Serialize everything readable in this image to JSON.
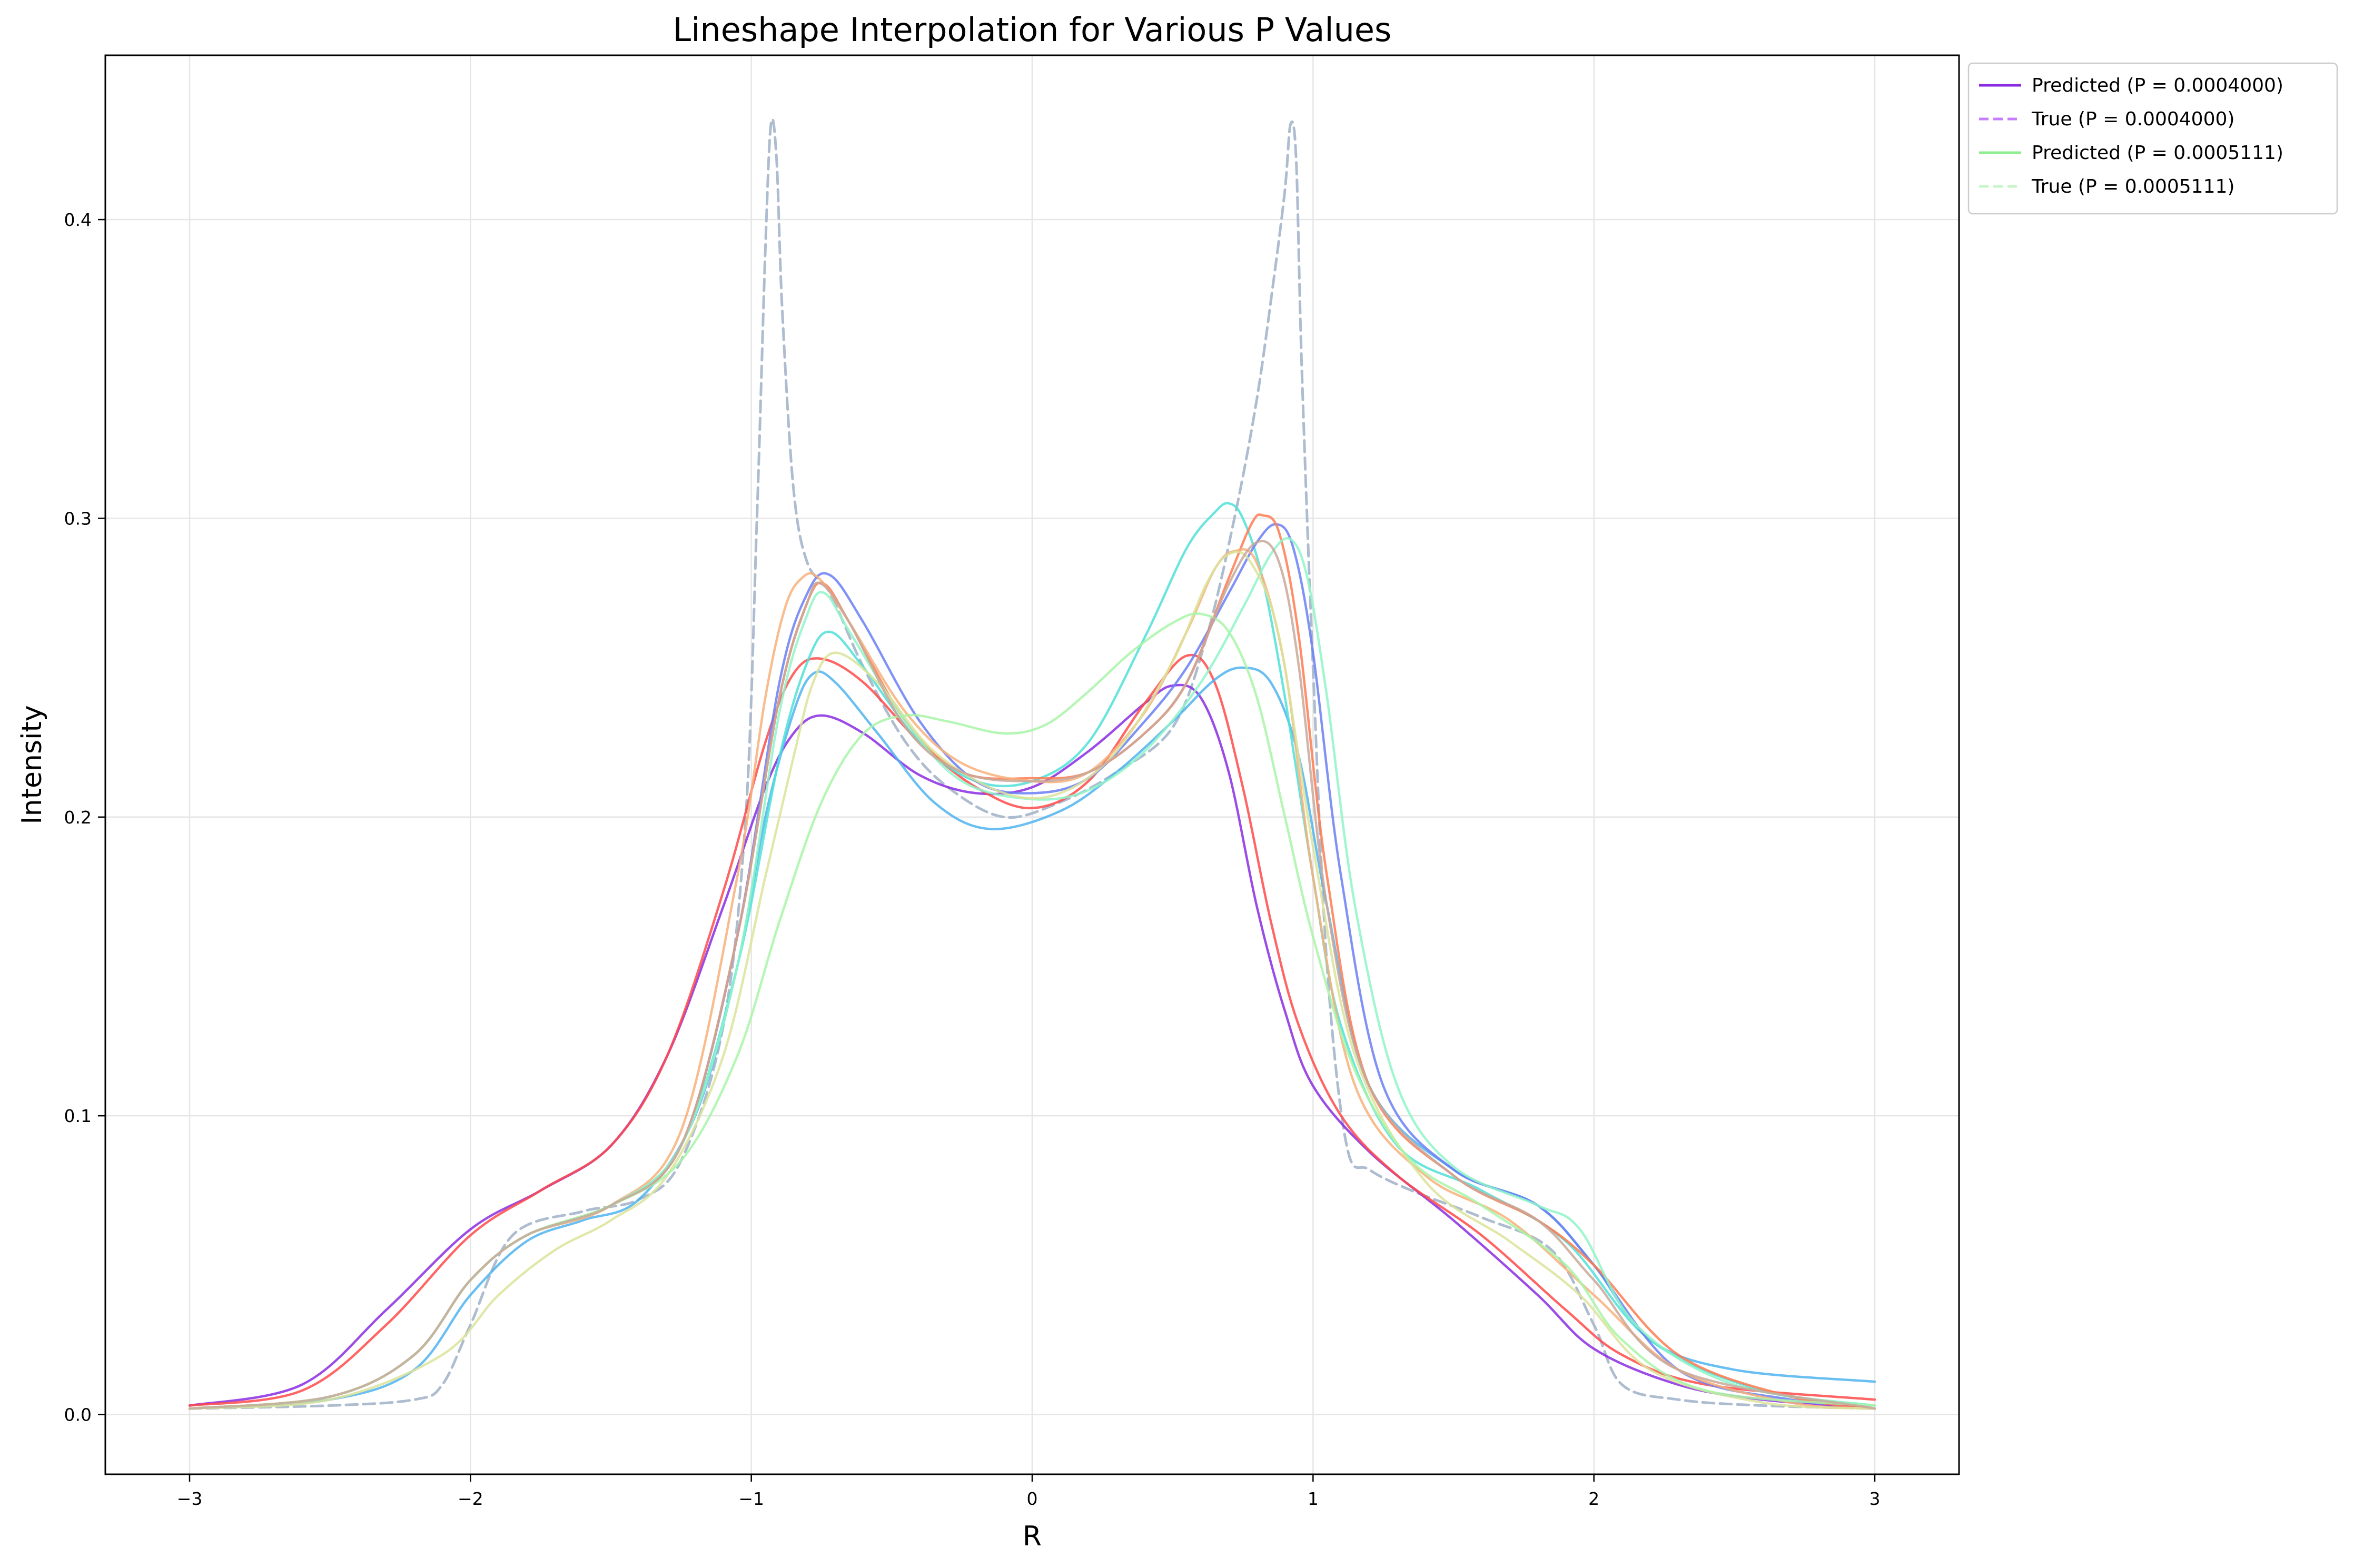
{
  "chart_data": {
    "type": "line",
    "title": "Lineshape Interpolation for Various P Values",
    "xlabel": "R",
    "ylabel": "Intensity",
    "xlim": [
      -3.3,
      3.3
    ],
    "ylim": [
      -0.02,
      0.455
    ],
    "grid": true,
    "legend_placement": "outside-top-right",
    "x_ticks": [
      -3,
      -2,
      -1,
      0,
      1,
      2,
      3
    ],
    "x_tick_labels": [
      "−3",
      "−2",
      "−1",
      "0",
      "1",
      "2",
      "3"
    ],
    "y_ticks": [
      0.0,
      0.1,
      0.2,
      0.3,
      0.4
    ],
    "y_tick_labels": [
      "0.0",
      "0.1",
      "0.2",
      "0.3",
      "0.4"
    ],
    "legend": [
      {
        "label": "Predicted (P = 0.0004000)",
        "color": "#8a2be2",
        "dashed": false
      },
      {
        "label": "True (P = 0.0004000)",
        "color": "#c77dff",
        "dashed": true
      },
      {
        "label": "Predicted (P = 0.0005111)",
        "color": "#90ee90",
        "dashed": false
      },
      {
        "label": "True (P = 0.0005111)",
        "color": "#c8f5c8",
        "dashed": true
      }
    ],
    "series": [
      {
        "name": "True (P = 0.0004000)",
        "color": "#a9b8cc",
        "dashed": true,
        "x": [
          -3,
          -2.5,
          -2.2,
          -2.1,
          -2.0,
          -1.85,
          -1.6,
          -1.4,
          -1.25,
          -1.1,
          -1.02,
          -0.98,
          -0.95,
          -0.93,
          -0.91,
          -0.89,
          -0.85,
          -0.8,
          -0.72,
          -0.6,
          -0.45,
          -0.3,
          -0.1,
          0.1,
          0.3,
          0.5,
          0.62,
          0.72,
          0.8,
          0.86,
          0.9,
          0.92,
          0.94,
          0.96,
          1.0,
          1.05,
          1.12,
          1.2,
          1.35,
          1.6,
          1.85,
          2.0,
          2.1,
          2.3,
          2.6,
          3
        ],
        "y": [
          0.002,
          0.003,
          0.005,
          0.01,
          0.03,
          0.06,
          0.068,
          0.072,
          0.085,
          0.13,
          0.2,
          0.3,
          0.39,
          0.432,
          0.42,
          0.37,
          0.31,
          0.285,
          0.275,
          0.25,
          0.225,
          0.21,
          0.2,
          0.205,
          0.215,
          0.23,
          0.26,
          0.3,
          0.34,
          0.38,
          0.41,
          0.432,
          0.42,
          0.35,
          0.25,
          0.15,
          0.09,
          0.082,
          0.075,
          0.066,
          0.055,
          0.03,
          0.01,
          0.005,
          0.003,
          0.002
        ]
      },
      {
        "name": "",
        "color": "#8a2be2",
        "dashed": false,
        "x": [
          -3,
          -2.6,
          -2.3,
          -2.0,
          -1.75,
          -1.5,
          -1.3,
          -1.1,
          -0.95,
          -0.85,
          -0.75,
          -0.6,
          -0.4,
          -0.2,
          0,
          0.2,
          0.4,
          0.5,
          0.6,
          0.7,
          0.8,
          0.9,
          1.0,
          1.2,
          1.5,
          1.8,
          2.0,
          2.3,
          2.6,
          3
        ],
        "y": [
          0.003,
          0.01,
          0.035,
          0.062,
          0.075,
          0.09,
          0.12,
          0.17,
          0.21,
          0.228,
          0.234,
          0.228,
          0.214,
          0.208,
          0.21,
          0.222,
          0.238,
          0.244,
          0.24,
          0.215,
          0.17,
          0.135,
          0.11,
          0.088,
          0.065,
          0.04,
          0.022,
          0.01,
          0.005,
          0.002
        ]
      },
      {
        "name": "",
        "color": "#ff4a4a",
        "dashed": false,
        "x": [
          -3,
          -2.6,
          -2.3,
          -2.0,
          -1.75,
          -1.5,
          -1.3,
          -1.1,
          -0.95,
          -0.85,
          -0.75,
          -0.6,
          -0.4,
          -0.2,
          0,
          0.2,
          0.4,
          0.55,
          0.65,
          0.75,
          0.85,
          0.95,
          1.1,
          1.3,
          1.6,
          1.9,
          2.1,
          2.4,
          3
        ],
        "y": [
          0.003,
          0.008,
          0.03,
          0.06,
          0.075,
          0.09,
          0.12,
          0.175,
          0.225,
          0.248,
          0.253,
          0.245,
          0.225,
          0.21,
          0.203,
          0.212,
          0.238,
          0.254,
          0.245,
          0.21,
          0.165,
          0.13,
          0.1,
          0.08,
          0.06,
          0.035,
          0.02,
          0.01,
          0.005
        ]
      },
      {
        "name": "",
        "color": "#4fb3f0",
        "dashed": false,
        "x": [
          -3,
          -2.5,
          -2.2,
          -2.0,
          -1.8,
          -1.6,
          -1.4,
          -1.2,
          -1.05,
          -0.95,
          -0.85,
          -0.78,
          -0.7,
          -0.55,
          -0.35,
          -0.15,
          0.1,
          0.3,
          0.5,
          0.65,
          0.75,
          0.85,
          0.95,
          1.05,
          1.2,
          1.5,
          1.8,
          2.0,
          2.2,
          2.5,
          3
        ],
        "y": [
          0.002,
          0.005,
          0.015,
          0.04,
          0.058,
          0.065,
          0.072,
          0.1,
          0.15,
          0.2,
          0.235,
          0.248,
          0.245,
          0.228,
          0.205,
          0.196,
          0.202,
          0.215,
          0.232,
          0.246,
          0.25,
          0.245,
          0.22,
          0.17,
          0.11,
          0.082,
          0.07,
          0.05,
          0.025,
          0.015,
          0.011
        ]
      },
      {
        "name": "",
        "color": "#50e0d8",
        "dashed": false,
        "x": [
          -3,
          -2.5,
          -2.2,
          -2.0,
          -1.8,
          -1.5,
          -1.25,
          -1.05,
          -0.9,
          -0.8,
          -0.72,
          -0.6,
          -0.4,
          -0.2,
          0,
          0.2,
          0.4,
          0.55,
          0.65,
          0.7,
          0.75,
          0.82,
          0.9,
          1.0,
          1.1,
          1.3,
          1.6,
          1.9,
          2.2,
          2.6,
          3
        ],
        "y": [
          0.002,
          0.006,
          0.02,
          0.045,
          0.06,
          0.07,
          0.09,
          0.15,
          0.22,
          0.252,
          0.262,
          0.25,
          0.225,
          0.212,
          0.212,
          0.225,
          0.26,
          0.29,
          0.302,
          0.305,
          0.3,
          0.28,
          0.24,
          0.18,
          0.13,
          0.09,
          0.075,
          0.058,
          0.025,
          0.008,
          0.003
        ]
      },
      {
        "name": "",
        "color": "#6a7ff5",
        "dashed": false,
        "x": [
          -3,
          -2.5,
          -2.2,
          -2.0,
          -1.8,
          -1.5,
          -1.25,
          -1.05,
          -0.9,
          -0.8,
          -0.72,
          -0.6,
          -0.4,
          -0.2,
          0,
          0.2,
          0.4,
          0.55,
          0.7,
          0.8,
          0.87,
          0.93,
          1.0,
          1.1,
          1.25,
          1.5,
          1.8,
          2.0,
          2.3,
          2.7,
          3
        ],
        "y": [
          0.002,
          0.006,
          0.02,
          0.045,
          0.06,
          0.07,
          0.09,
          0.16,
          0.245,
          0.275,
          0.281,
          0.265,
          0.232,
          0.212,
          0.208,
          0.213,
          0.232,
          0.25,
          0.275,
          0.292,
          0.298,
          0.29,
          0.255,
          0.18,
          0.11,
          0.082,
          0.07,
          0.05,
          0.015,
          0.005,
          0.003
        ]
      },
      {
        "name": "",
        "color": "#ff7a50",
        "dashed": false,
        "x": [
          -3,
          -2.5,
          -2.2,
          -2.0,
          -1.8,
          -1.5,
          -1.25,
          -1.05,
          -0.9,
          -0.8,
          -0.74,
          -0.65,
          -0.45,
          -0.25,
          0,
          0.2,
          0.4,
          0.55,
          0.7,
          0.78,
          0.82,
          0.88,
          0.95,
          1.05,
          1.2,
          1.5,
          1.8,
          2.0,
          2.3,
          2.7,
          3
        ],
        "y": [
          0.002,
          0.006,
          0.02,
          0.045,
          0.06,
          0.07,
          0.09,
          0.16,
          0.24,
          0.272,
          0.278,
          0.265,
          0.232,
          0.215,
          0.213,
          0.215,
          0.228,
          0.245,
          0.28,
          0.298,
          0.301,
          0.295,
          0.26,
          0.18,
          0.11,
          0.08,
          0.065,
          0.05,
          0.02,
          0.006,
          0.002
        ]
      },
      {
        "name": "",
        "color": "#f7b07a",
        "dashed": false,
        "x": [
          -3,
          -2.5,
          -2.2,
          -2.0,
          -1.8,
          -1.5,
          -1.25,
          -1.05,
          -0.95,
          -0.88,
          -0.82,
          -0.76,
          -0.65,
          -0.45,
          -0.25,
          0,
          0.2,
          0.4,
          0.55,
          0.65,
          0.72,
          0.8,
          0.9,
          1.0,
          1.15,
          1.4,
          1.7,
          2.0,
          2.3,
          2.7,
          3
        ],
        "y": [
          0.002,
          0.006,
          0.02,
          0.045,
          0.06,
          0.07,
          0.095,
          0.18,
          0.24,
          0.27,
          0.28,
          0.28,
          0.265,
          0.235,
          0.218,
          0.212,
          0.215,
          0.235,
          0.262,
          0.283,
          0.289,
          0.285,
          0.25,
          0.18,
          0.11,
          0.08,
          0.065,
          0.04,
          0.015,
          0.004,
          0.002
        ]
      },
      {
        "name": "",
        "color": "#8ff5c8",
        "dashed": false,
        "x": [
          -3,
          -2.5,
          -2.2,
          -2.0,
          -1.8,
          -1.5,
          -1.25,
          -1.05,
          -0.9,
          -0.8,
          -0.74,
          -0.65,
          -0.45,
          -0.25,
          0,
          0.2,
          0.4,
          0.6,
          0.75,
          0.85,
          0.92,
          0.98,
          1.05,
          1.15,
          1.3,
          1.5,
          1.8,
          1.95,
          2.15,
          2.5,
          3
        ],
        "y": [
          0.002,
          0.006,
          0.02,
          0.045,
          0.06,
          0.07,
          0.09,
          0.15,
          0.235,
          0.268,
          0.275,
          0.262,
          0.232,
          0.212,
          0.206,
          0.209,
          0.222,
          0.245,
          0.27,
          0.288,
          0.293,
          0.28,
          0.24,
          0.17,
          0.11,
          0.083,
          0.07,
          0.062,
          0.03,
          0.01,
          0.003
        ]
      },
      {
        "name": "",
        "color": "#dce39a",
        "dashed": false,
        "x": [
          -3,
          -2.5,
          -2.1,
          -1.9,
          -1.7,
          -1.5,
          -1.3,
          -1.1,
          -0.95,
          -0.85,
          -0.78,
          -0.7,
          -0.55,
          -0.35,
          -0.1,
          0.1,
          0.3,
          0.5,
          0.62,
          0.7,
          0.78,
          0.88,
          1.0,
          1.15,
          1.4,
          1.7,
          1.95,
          2.2,
          2.6,
          3
        ],
        "y": [
          0.002,
          0.005,
          0.02,
          0.04,
          0.055,
          0.065,
          0.08,
          0.12,
          0.18,
          0.22,
          0.245,
          0.255,
          0.245,
          0.222,
          0.208,
          0.208,
          0.222,
          0.252,
          0.278,
          0.288,
          0.285,
          0.26,
          0.19,
          0.12,
          0.078,
          0.058,
          0.04,
          0.015,
          0.004,
          0.002
        ]
      },
      {
        "name": "",
        "color": "#a8f5a8",
        "dashed": false,
        "x": [
          -3,
          -2.5,
          -2.2,
          -2.0,
          -1.8,
          -1.5,
          -1.25,
          -1.05,
          -0.9,
          -0.75,
          -0.6,
          -0.45,
          -0.3,
          -0.1,
          0.05,
          0.2,
          0.35,
          0.5,
          0.6,
          0.7,
          0.8,
          0.9,
          1.0,
          1.15,
          1.35,
          1.6,
          1.9,
          2.1,
          2.4,
          3
        ],
        "y": [
          0.002,
          0.006,
          0.02,
          0.045,
          0.06,
          0.07,
          0.085,
          0.12,
          0.165,
          0.205,
          0.228,
          0.234,
          0.232,
          0.228,
          0.231,
          0.242,
          0.255,
          0.265,
          0.268,
          0.262,
          0.24,
          0.2,
          0.16,
          0.115,
          0.085,
          0.07,
          0.05,
          0.025,
          0.008,
          0.003
        ]
      },
      {
        "name": "",
        "color": "#c9a89a",
        "dashed": false,
        "x": [
          -3,
          -2.5,
          -2.2,
          -2.0,
          -1.8,
          -1.5,
          -1.25,
          -1.05,
          -0.9,
          -0.8,
          -0.75,
          -0.65,
          -0.45,
          -0.25,
          0,
          0.2,
          0.4,
          0.55,
          0.7,
          0.8,
          0.88,
          0.95,
          1.05,
          1.2,
          1.5,
          1.8,
          2.0,
          2.3,
          3
        ],
        "y": [
          0.002,
          0.006,
          0.02,
          0.045,
          0.06,
          0.07,
          0.09,
          0.16,
          0.24,
          0.272,
          0.278,
          0.265,
          0.23,
          0.215,
          0.212,
          0.215,
          0.228,
          0.245,
          0.278,
          0.292,
          0.285,
          0.25,
          0.17,
          0.11,
          0.08,
          0.065,
          0.045,
          0.015,
          0.002
        ]
      }
    ]
  }
}
